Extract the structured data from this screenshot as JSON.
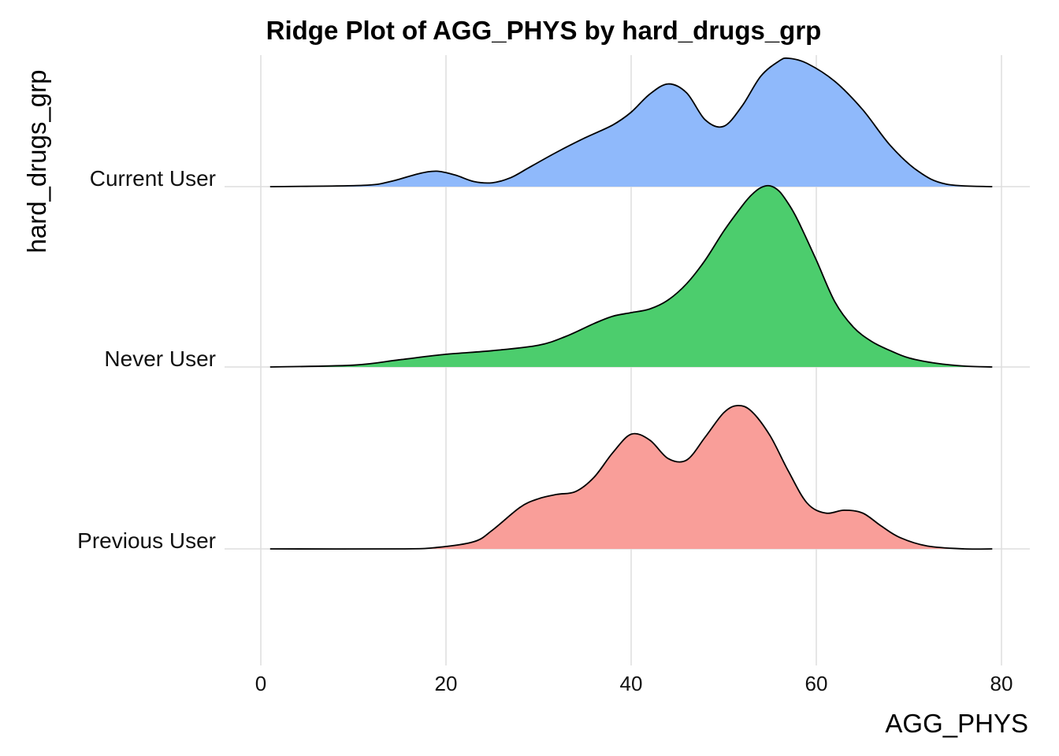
{
  "chart_data": {
    "type": "ridgeline",
    "title": "Ridge Plot of AGG_PHYS by hard_drugs_grp",
    "xlabel": "AGG_PHYS",
    "ylabel": "hard_drugs_grp",
    "xlim": [
      -2,
      83
    ],
    "xticks": [
      0,
      20,
      40,
      60,
      80
    ],
    "grid": true,
    "legend": "none",
    "series": [
      {
        "name": "Current User",
        "color": "#8fb9fb",
        "x": [
          1,
          11,
          14,
          17,
          19,
          21,
          23,
          25,
          27,
          29,
          32,
          35,
          38,
          40,
          42,
          44,
          46,
          48,
          50,
          52,
          54,
          56,
          57,
          59,
          62,
          65,
          68,
          71,
          74,
          79
        ],
        "y": [
          0,
          0.01,
          0.04,
          0.1,
          0.12,
          0.09,
          0.04,
          0.03,
          0.07,
          0.15,
          0.27,
          0.38,
          0.48,
          0.58,
          0.72,
          0.8,
          0.73,
          0.52,
          0.47,
          0.63,
          0.86,
          0.98,
          1.0,
          0.96,
          0.82,
          0.6,
          0.32,
          0.12,
          0.02,
          0
        ]
      },
      {
        "name": "Never User",
        "color": "#4ccd6d",
        "x": [
          1,
          10,
          15,
          20,
          25,
          30,
          33,
          36,
          38,
          40,
          42,
          44,
          46,
          48,
          50,
          52,
          53,
          54,
          55,
          56,
          57,
          58,
          60,
          62,
          64,
          66,
          68,
          70,
          73,
          76,
          79
        ],
        "y": [
          0,
          0.01,
          0.04,
          0.07,
          0.09,
          0.12,
          0.17,
          0.24,
          0.28,
          0.3,
          0.32,
          0.37,
          0.46,
          0.59,
          0.75,
          0.89,
          0.95,
          0.99,
          1.0,
          0.97,
          0.9,
          0.81,
          0.59,
          0.36,
          0.22,
          0.14,
          0.09,
          0.05,
          0.02,
          0.005,
          0
        ]
      },
      {
        "name": "Previous User",
        "color": "#f99e99",
        "x": [
          1,
          15,
          19,
          23,
          25,
          28,
          30,
          32,
          34,
          36,
          38,
          40,
          42,
          44,
          46,
          48,
          50,
          51.5,
          53,
          55,
          57,
          59,
          61,
          63,
          65,
          67,
          69,
          72,
          76,
          79
        ],
        "y": [
          0,
          0,
          0.01,
          0.05,
          0.13,
          0.29,
          0.35,
          0.38,
          0.4,
          0.5,
          0.67,
          0.8,
          0.76,
          0.63,
          0.62,
          0.78,
          0.95,
          1.0,
          0.96,
          0.79,
          0.54,
          0.32,
          0.25,
          0.27,
          0.25,
          0.16,
          0.08,
          0.02,
          0,
          0
        ]
      }
    ]
  }
}
